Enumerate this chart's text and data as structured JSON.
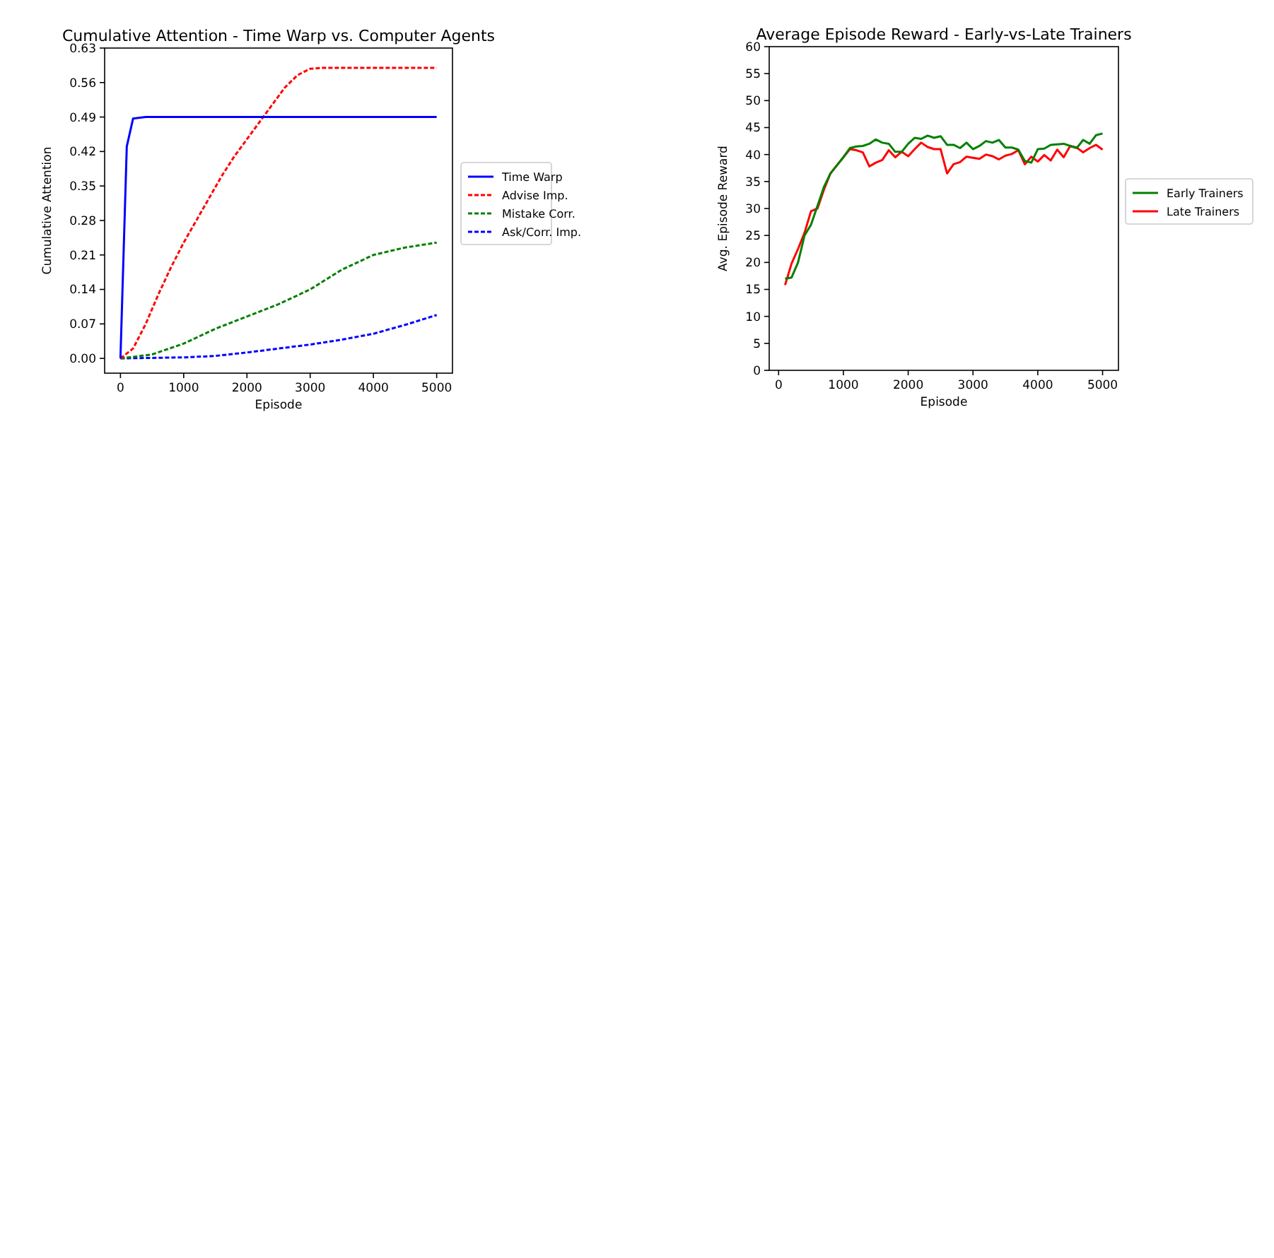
{
  "chart_data": [
    {
      "type": "line",
      "title": "Cumulative Attention - Time Warp vs. Computer Agents",
      "xlabel": "Episode",
      "ylabel": "Cumulative Attention",
      "xlim": [
        -250,
        5250
      ],
      "ylim": [
        -0.03,
        0.63
      ],
      "xticks": [
        0,
        1000,
        2000,
        3000,
        4000,
        5000
      ],
      "yticks": [
        {
          "value": 0,
          "label": "0.00"
        },
        0.07,
        0.14,
        0.21,
        0.28,
        0.35,
        0.42,
        0.49,
        0.56,
        0.63
      ],
      "legend": "right",
      "grid": false,
      "series": [
        {
          "name": "Time Warp",
          "color": "#0000ff",
          "line_style": "solid",
          "x": [
            0,
            100,
            200,
            400,
            5000
          ],
          "values": [
            0,
            0.43,
            0.487,
            0.49,
            0.49
          ]
        },
        {
          "name": "Advise Imp.",
          "color": "#ff0000",
          "line_style": "dashed",
          "x": [
            0,
            200,
            400,
            600,
            800,
            1000,
            1200,
            1400,
            1600,
            1800,
            2000,
            2200,
            2400,
            2600,
            2800,
            3000,
            3200,
            5000
          ],
          "values": [
            0,
            0.02,
            0.07,
            0.13,
            0.185,
            0.235,
            0.28,
            0.325,
            0.37,
            0.41,
            0.445,
            0.48,
            0.515,
            0.55,
            0.575,
            0.588,
            0.59,
            0.59
          ]
        },
        {
          "name": "Mistake Corr.",
          "color": "#008000",
          "line_style": "dashed",
          "x": [
            0,
            500,
            1000,
            1500,
            2000,
            2500,
            3000,
            3500,
            4000,
            4500,
            5000
          ],
          "values": [
            0,
            0.008,
            0.03,
            0.06,
            0.085,
            0.11,
            0.14,
            0.18,
            0.21,
            0.225,
            0.235
          ]
        },
        {
          "name": "Ask/Corr. Imp.",
          "color": "#0000ff",
          "line_style": "dashed",
          "x": [
            0,
            1000,
            1500,
            2000,
            2500,
            3000,
            3500,
            4000,
            4500,
            5000
          ],
          "values": [
            0,
            0.002,
            0.005,
            0.012,
            0.02,
            0.028,
            0.038,
            0.05,
            0.068,
            0.088
          ]
        }
      ]
    },
    {
      "type": "line",
      "title": "Average Episode Reward - Early-vs-Late Trainers",
      "xlabel": "Episode",
      "ylabel": "Avg. Episode Reward",
      "xlim": [
        -145,
        5245
      ],
      "ylim": [
        0,
        60
      ],
      "xticks": [
        0,
        1000,
        2000,
        3000,
        4000,
        5000
      ],
      "yticks": [
        0,
        5,
        10,
        15,
        20,
        25,
        30,
        35,
        40,
        45,
        50,
        55,
        60
      ],
      "legend": "right",
      "grid": false,
      "x": [
        100,
        200,
        300,
        400,
        500,
        600,
        700,
        800,
        900,
        1000,
        1100,
        1200,
        1300,
        1400,
        1500,
        1600,
        1700,
        1800,
        1900,
        2000,
        2100,
        2200,
        2300,
        2400,
        2500,
        2600,
        2700,
        2800,
        2900,
        3000,
        3100,
        3200,
        3300,
        3400,
        3500,
        3600,
        3700,
        3800,
        3900,
        4000,
        4100,
        4200,
        4300,
        4400,
        4500,
        4600,
        4700,
        4800,
        4900,
        5000
      ],
      "series": [
        {
          "name": "Early Trainers",
          "color": "#008000",
          "line_style": "solid",
          "values": [
            17,
            17.2,
            20,
            25,
            27,
            30.5,
            34,
            36.5,
            38,
            39.5,
            41.2,
            41.5,
            41.6,
            42,
            42.8,
            42.2,
            42,
            40.5,
            40.5,
            42,
            43.1,
            42.9,
            43.5,
            43.1,
            43.4,
            41.8,
            41.8,
            41.2,
            42.2,
            41,
            41.6,
            42.5,
            42.2,
            42.7,
            41.3,
            41.3,
            40.9,
            38.8,
            38.5,
            41,
            41.1,
            41.8,
            41.9,
            42,
            41.6,
            41.2,
            42.7,
            42,
            43.6,
            43.9
          ]
        },
        {
          "name": "Late Trainers",
          "color": "#ff0000",
          "line_style": "solid",
          "values": [
            15.8,
            19.8,
            22.5,
            25.5,
            29.5,
            30,
            33.5,
            36.5,
            38,
            39.5,
            41,
            40.8,
            40.4,
            37.8,
            38.5,
            39,
            40.8,
            39.5,
            40.5,
            39.7,
            41,
            42.2,
            41.4,
            41,
            41,
            36.5,
            38.2,
            38.6,
            39.6,
            39.4,
            39.2,
            40,
            39.7,
            39.1,
            39.8,
            40.1,
            40.8,
            38.2,
            39.6,
            38.7,
            39.9,
            38.9,
            40.9,
            39.5,
            41.6,
            41.3,
            40.4,
            41.2,
            41.8,
            40.9
          ]
        }
      ]
    }
  ]
}
